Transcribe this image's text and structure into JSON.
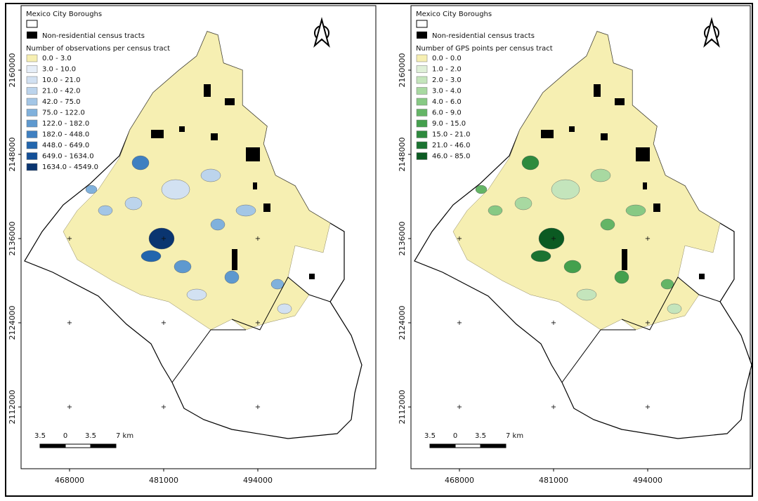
{
  "maps": [
    {
      "boroughs_label": "Mexico City Boroughs",
      "nonres_label": "Non-residential census tracts",
      "legend_title": "Number of observations per census tract",
      "classes": [
        {
          "label": "0.0 - 3.0",
          "color": "#f6efb2"
        },
        {
          "label": "3.0 - 10.0",
          "color": "#e6eef8"
        },
        {
          "label": "10.0 - 21.0",
          "color": "#d2e1f2"
        },
        {
          "label": "21.0 - 42.0",
          "color": "#bcd4ec"
        },
        {
          "label": "42.0 - 75.0",
          "color": "#a3c6e6"
        },
        {
          "label": "75.0 - 122.0",
          "color": "#80b1dc"
        },
        {
          "label": "122.0 - 182.0",
          "color": "#5e99cf"
        },
        {
          "label": "182.0 - 448.0",
          "color": "#3f80c1"
        },
        {
          "label": "448.0 - 649.0",
          "color": "#2366ad"
        },
        {
          "label": "649.0 - 1634.0",
          "color": "#134f97"
        },
        {
          "label": "1634.0 - 4549.0",
          "color": "#0a3570"
        }
      ],
      "xticks": [
        468000,
        481000,
        494000
      ],
      "yticks": [
        2112000,
        2124000,
        2136000,
        2148000,
        2160000
      ],
      "scale_labels": [
        "3.5",
        "0",
        "3.5",
        "7 km"
      ]
    },
    {
      "boroughs_label": "Mexico City Boroughs",
      "nonres_label": "Non-residential census tracts",
      "legend_title": "Number of GPS points per census tract",
      "classes": [
        {
          "label": "0.0 - 0.0",
          "color": "#f6efb2"
        },
        {
          "label": "1.0 - 2.0",
          "color": "#dff0d8"
        },
        {
          "label": "2.0 - 3.0",
          "color": "#c4e5bc"
        },
        {
          "label": "3.0 - 4.0",
          "color": "#a8d9a1"
        },
        {
          "label": "4.0 - 6.0",
          "color": "#87c984"
        },
        {
          "label": "6.0 - 9.0",
          "color": "#64b566"
        },
        {
          "label": "9.0 - 15.0",
          "color": "#44a04d"
        },
        {
          "label": "15.0 - 21.0",
          "color": "#2e8a3e"
        },
        {
          "label": "21.0 - 46.0",
          "color": "#1a7331"
        },
        {
          "label": "46.0 - 85.0",
          "color": "#0b5a22"
        }
      ],
      "xticks": [
        468000,
        481000,
        494000
      ],
      "yticks": [
        2112000,
        2124000,
        2136000,
        2148000,
        2160000
      ],
      "scale_labels": [
        "3.5",
        "0",
        "3.5",
        "7 km"
      ]
    }
  ]
}
